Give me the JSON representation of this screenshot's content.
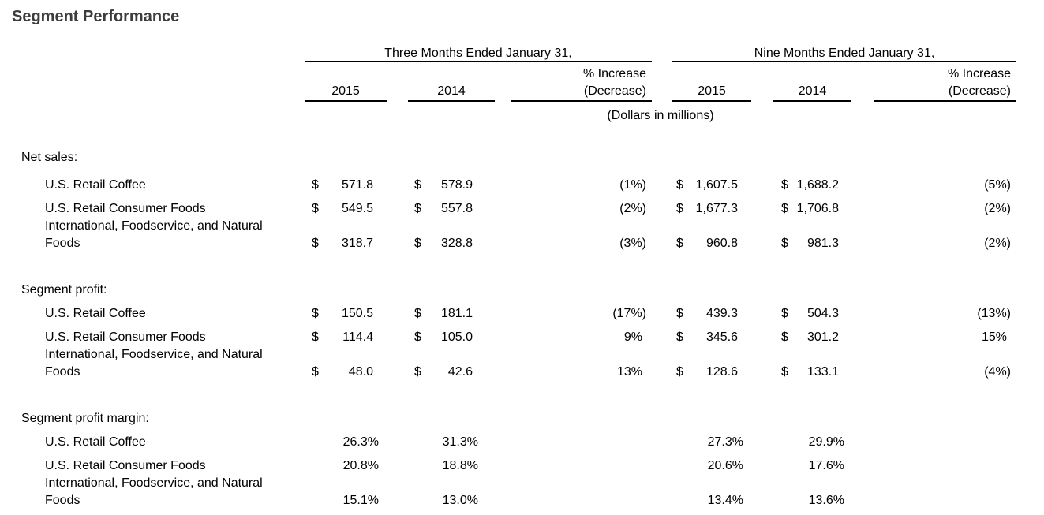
{
  "title": "Segment Performance",
  "colors": {
    "title": "#3c3c3c",
    "text": "#000000",
    "rule": "#000000"
  },
  "table": {
    "units_note": "(Dollars in millions)",
    "groups": {
      "three": {
        "label": "Three Months Ended January 31,",
        "col_2015": "2015",
        "col_2014": "2014",
        "pct_line1": "% Increase",
        "pct_line2": "(Decrease)"
      },
      "nine": {
        "label": "Nine Months Ended January 31,",
        "col_2015": "2015",
        "col_2014": "2014",
        "pct_line1": "% Increase",
        "pct_line2": "(Decrease)"
      }
    },
    "sections": [
      {
        "label": "Net sales:",
        "rows": [
          {
            "label1": "U.S. Retail Coffee",
            "label2": "",
            "t_d15": "$",
            "t_v15": "571.8",
            "t_d14": "$",
            "t_v14": "578.9",
            "t_pct": "(1%)",
            "n_d15": "$",
            "n_v15": "1,607.5",
            "n_d14": "$",
            "n_v14": "1,688.2",
            "n_pct": "(5%)"
          },
          {
            "label1": "U.S. Retail Consumer Foods",
            "label2": "",
            "t_d15": "$",
            "t_v15": "549.5",
            "t_d14": "$",
            "t_v14": "557.8",
            "t_pct": "(2%)",
            "n_d15": "$",
            "n_v15": "1,677.3",
            "n_d14": "$",
            "n_v14": "1,706.8",
            "n_pct": "(2%)"
          },
          {
            "label1": "International, Foodservice, and Natural",
            "label2": "Foods",
            "t_d15": "$",
            "t_v15": "318.7",
            "t_d14": "$",
            "t_v14": "328.8",
            "t_pct": "(3%)",
            "n_d15": "$",
            "n_v15": "960.8",
            "n_d14": "$",
            "n_v14": "981.3",
            "n_pct": "(2%)"
          }
        ]
      },
      {
        "label": "Segment profit:",
        "rows": [
          {
            "label1": "U.S. Retail Coffee",
            "label2": "",
            "t_d15": "$",
            "t_v15": "150.5",
            "t_d14": "$",
            "t_v14": "181.1",
            "t_pct": "(17%)",
            "n_d15": "$",
            "n_v15": "439.3",
            "n_d14": "$",
            "n_v14": "504.3",
            "n_pct": "(13%)"
          },
          {
            "label1": "U.S. Retail Consumer Foods",
            "label2": "",
            "t_d15": "$",
            "t_v15": "114.4",
            "t_d14": "$",
            "t_v14": "105.0",
            "t_pct": "9%",
            "n_d15": "$",
            "n_v15": "345.6",
            "n_d14": "$",
            "n_v14": "301.2",
            "n_pct": "15%"
          },
          {
            "label1": "International, Foodservice, and Natural",
            "label2": "Foods",
            "t_d15": "$",
            "t_v15": "48.0",
            "t_d14": "$",
            "t_v14": "42.6",
            "t_pct": "13%",
            "n_d15": "$",
            "n_v15": "128.6",
            "n_d14": "$",
            "n_v14": "133.1",
            "n_pct": "(4%)"
          }
        ]
      },
      {
        "label": "Segment profit margin:",
        "rows": [
          {
            "label1": "U.S. Retail Coffee",
            "label2": "",
            "t_d15": "",
            "t_v15": "26.3%",
            "t_d14": "",
            "t_v14": "31.3%",
            "t_pct": "",
            "n_d15": "",
            "n_v15": "27.3%",
            "n_d14": "",
            "n_v14": "29.9%",
            "n_pct": ""
          },
          {
            "label1": "U.S. Retail Consumer Foods",
            "label2": "",
            "t_d15": "",
            "t_v15": "20.8%",
            "t_d14": "",
            "t_v14": "18.8%",
            "t_pct": "",
            "n_d15": "",
            "n_v15": "20.6%",
            "n_d14": "",
            "n_v14": "17.6%",
            "n_pct": ""
          },
          {
            "label1": "International, Foodservice, and Natural",
            "label2": "Foods",
            "t_d15": "",
            "t_v15": "15.1%",
            "t_d14": "",
            "t_v14": "13.0%",
            "t_pct": "",
            "n_d15": "",
            "n_v15": "13.4%",
            "n_d14": "",
            "n_v14": "13.6%",
            "n_pct": ""
          }
        ]
      }
    ]
  }
}
